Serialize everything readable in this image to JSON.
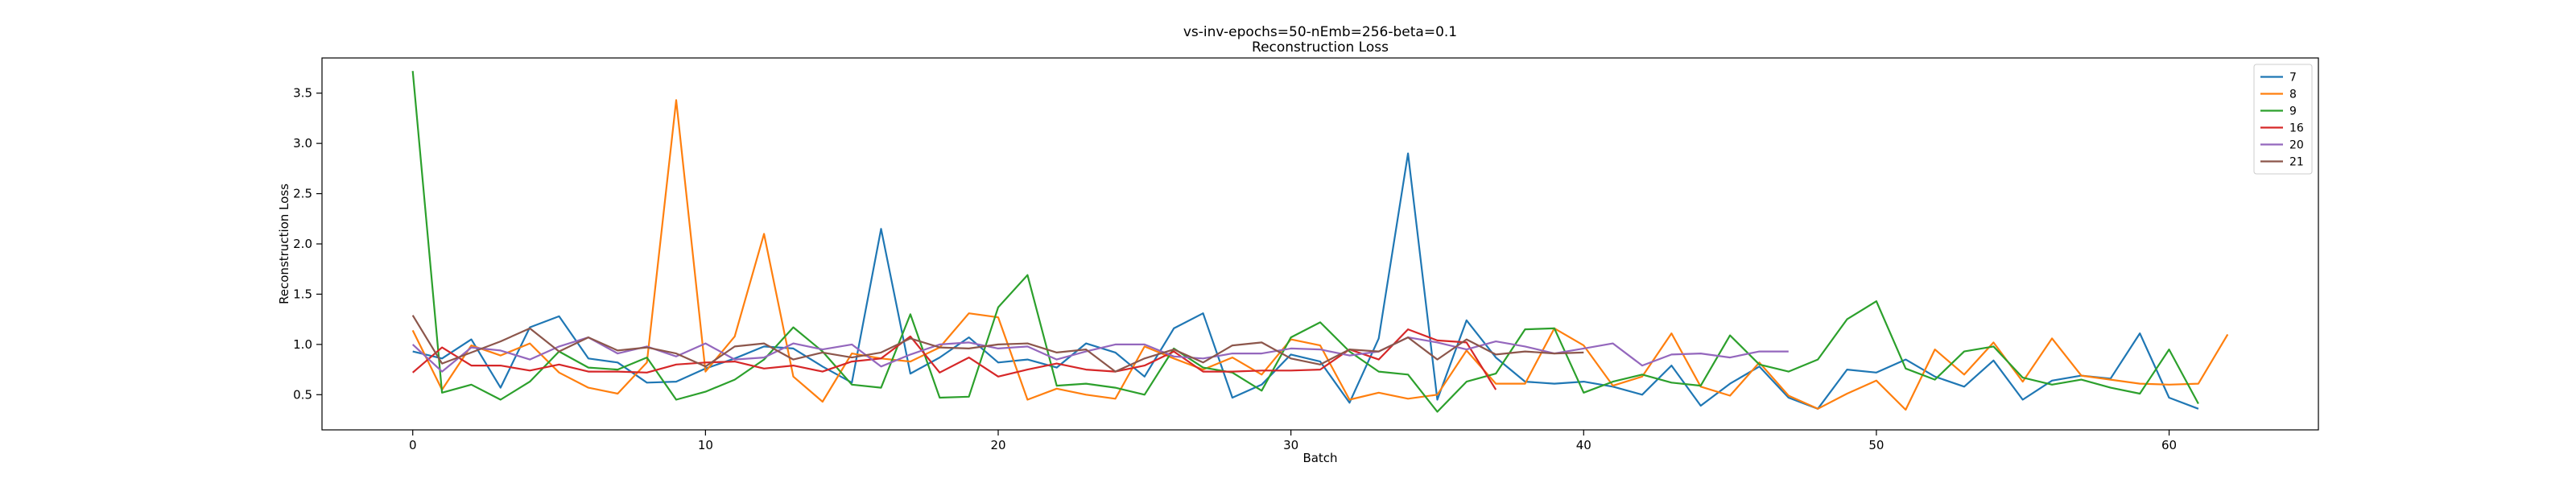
{
  "chart_data": {
    "type": "line",
    "title": "vs-inv-epochs=50-nEmb=256-beta=0.1",
    "subtitle": "Reconstruction Loss",
    "xlabel": "Batch",
    "ylabel": "Reconstruction Loss",
    "xlim": [
      -3.1,
      65.1
    ],
    "ylim": [
      0.15,
      3.85
    ],
    "xticks": [
      0,
      10,
      20,
      30,
      40,
      50,
      60
    ],
    "yticks": [
      0.5,
      1.0,
      1.5,
      2.0,
      2.5,
      3.0,
      3.5
    ],
    "grid": false,
    "legend_position": "top-right",
    "series": [
      {
        "name": "7",
        "color": "#1f77b4",
        "values": [
          0.93,
          0.86,
          1.05,
          0.57,
          1.17,
          1.28,
          0.86,
          0.82,
          0.62,
          0.63,
          0.76,
          0.86,
          0.98,
          0.96,
          0.78,
          0.62,
          2.15,
          0.71,
          0.87,
          1.07,
          0.82,
          0.85,
          0.77,
          1.01,
          0.92,
          0.68,
          1.16,
          1.31,
          0.47,
          0.6,
          0.9,
          0.83,
          0.42,
          1.06,
          2.9,
          0.45,
          1.24,
          0.87,
          0.63,
          0.61,
          0.63,
          0.58,
          0.5,
          0.79,
          0.39,
          0.61,
          0.78,
          0.47,
          0.36,
          0.75,
          0.72,
          0.85,
          0.68,
          0.58,
          0.84,
          0.45,
          0.64,
          0.69,
          0.66,
          1.11,
          0.47,
          0.36
        ]
      },
      {
        "name": "8",
        "color": "#ff7f0e",
        "values": [
          1.14,
          0.55,
          0.99,
          0.89,
          1.01,
          0.72,
          0.57,
          0.51,
          0.82,
          3.43,
          0.73,
          1.08,
          2.1,
          0.68,
          0.43,
          0.91,
          0.86,
          0.83,
          0.97,
          1.31,
          1.27,
          0.45,
          0.56,
          0.5,
          0.46,
          0.98,
          0.86,
          0.75,
          0.87,
          0.7,
          1.05,
          0.99,
          0.45,
          0.52,
          0.46,
          0.5,
          0.94,
          0.61,
          0.61,
          1.16,
          0.99,
          0.59,
          0.68,
          1.11,
          0.58,
          0.49,
          0.82,
          0.49,
          0.36,
          0.51,
          0.64,
          0.35,
          0.95,
          0.7,
          1.02,
          0.63,
          1.06,
          0.69,
          0.65,
          0.61,
          0.6,
          0.61,
          1.1
        ]
      },
      {
        "name": "9",
        "color": "#2ca02c",
        "values": [
          3.72,
          0.52,
          0.6,
          0.45,
          0.63,
          0.93,
          0.77,
          0.75,
          0.87,
          0.45,
          0.53,
          0.65,
          0.85,
          1.17,
          0.93,
          0.6,
          0.57,
          1.3,
          0.47,
          0.48,
          1.37,
          1.69,
          0.59,
          0.61,
          0.57,
          0.5,
          0.96,
          0.77,
          0.72,
          0.54,
          1.07,
          1.22,
          0.93,
          0.73,
          0.7,
          0.33,
          0.63,
          0.71,
          1.15,
          1.16,
          0.52,
          0.63,
          0.7,
          0.62,
          0.59,
          1.09,
          0.8,
          0.73,
          0.85,
          1.25,
          1.43,
          0.76,
          0.65,
          0.93,
          0.98,
          0.67,
          0.6,
          0.65,
          0.57,
          0.51,
          0.95,
          0.41
        ]
      },
      {
        "name": "16",
        "color": "#d62728",
        "values": [
          0.72,
          0.97,
          0.79,
          0.79,
          0.74,
          0.8,
          0.73,
          0.73,
          0.72,
          0.8,
          0.82,
          0.83,
          0.76,
          0.79,
          0.73,
          0.83,
          0.86,
          1.08,
          0.72,
          0.87,
          0.68,
          0.75,
          0.81,
          0.75,
          0.73,
          0.79,
          0.93,
          0.73,
          0.73,
          0.74,
          0.74,
          0.75,
          0.95,
          0.85,
          1.15,
          1.04,
          1.02,
          0.55
        ]
      },
      {
        "name": "20",
        "color": "#9467bd",
        "values": [
          1.0,
          0.73,
          0.97,
          0.94,
          0.85,
          0.98,
          1.07,
          0.91,
          0.98,
          0.88,
          1.01,
          0.85,
          0.87,
          1.01,
          0.95,
          1.0,
          0.78,
          0.9,
          1.0,
          1.02,
          0.96,
          0.98,
          0.85,
          0.93,
          1.0,
          1.0,
          0.88,
          0.86,
          0.91,
          0.91,
          0.96,
          0.95,
          0.89,
          0.93,
          1.07,
          1.02,
          0.95,
          1.03,
          0.98,
          0.91,
          0.96,
          1.01,
          0.79,
          0.9,
          0.91,
          0.87,
          0.93,
          0.93
        ]
      },
      {
        "name": "21",
        "color": "#8c564b",
        "values": [
          1.29,
          0.81,
          0.92,
          1.03,
          1.16,
          0.93,
          1.07,
          0.94,
          0.97,
          0.91,
          0.78,
          0.98,
          1.01,
          0.85,
          0.92,
          0.87,
          0.92,
          1.06,
          0.97,
          0.96,
          1.0,
          1.01,
          0.92,
          0.95,
          0.73,
          0.86,
          0.95,
          0.82,
          0.99,
          1.02,
          0.86,
          0.8,
          0.95,
          0.93,
          1.07,
          0.85,
          1.05,
          0.9,
          0.93,
          0.91,
          0.92
        ]
      }
    ]
  }
}
